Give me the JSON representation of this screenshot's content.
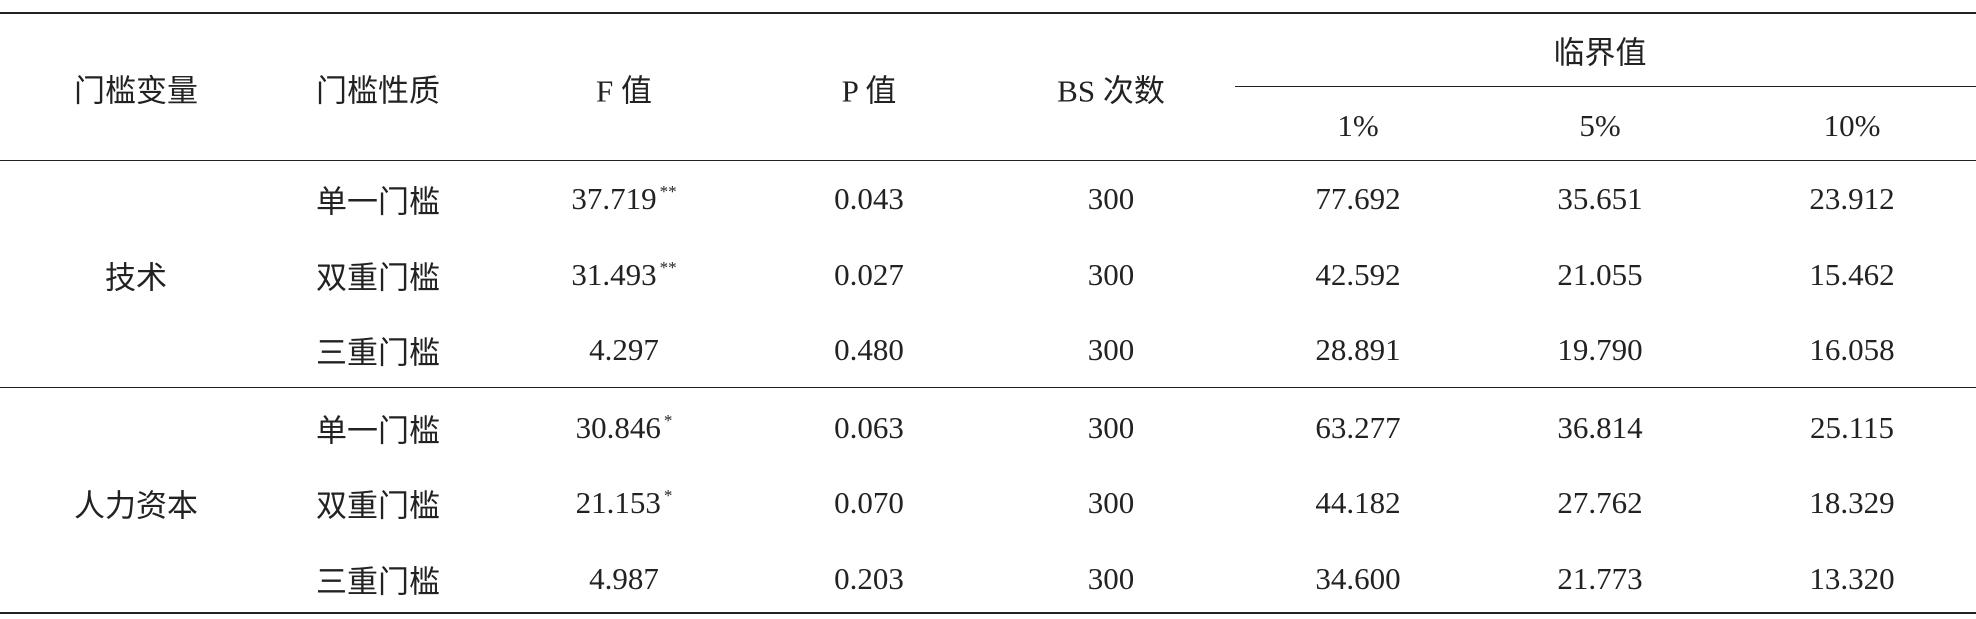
{
  "table": {
    "header": {
      "variable": "门槛变量",
      "nature": "门槛性质",
      "f": "F 值",
      "p": "P 值",
      "bs": "BS 次数",
      "critical": "临界值",
      "levels": [
        "1%",
        "5%",
        "10%"
      ]
    },
    "groups": [
      {
        "name": "技术",
        "rows": [
          {
            "nature": "单一门槛",
            "f": "37.719",
            "sig": "**",
            "p": "0.043",
            "bs": "300",
            "cv": [
              "77.692",
              "35.651",
              "23.912"
            ]
          },
          {
            "nature": "双重门槛",
            "f": "31.493",
            "sig": "**",
            "p": "0.027",
            "bs": "300",
            "cv": [
              "42.592",
              "21.055",
              "15.462"
            ]
          },
          {
            "nature": "三重门槛",
            "f": "4.297",
            "p": "0.480",
            "bs": "300",
            "cv": [
              "28.891",
              "19.790",
              "16.058"
            ]
          }
        ]
      },
      {
        "name": "人力资本",
        "rows": [
          {
            "nature": "单一门槛",
            "f": "30.846",
            "sig": "*",
            "p": "0.063",
            "bs": "300",
            "cv": [
              "63.277",
              "36.814",
              "25.115"
            ]
          },
          {
            "nature": "双重门槛",
            "f": "21.153",
            "sig": "*",
            "p": "0.070",
            "bs": "300",
            "cv": [
              "44.182",
              "27.762",
              "18.329"
            ]
          },
          {
            "nature": "三重门槛",
            "f": "4.987",
            "p": "0.203",
            "bs": "300",
            "cv": [
              "34.600",
              "21.773",
              "13.320"
            ]
          }
        ]
      }
    ]
  }
}
